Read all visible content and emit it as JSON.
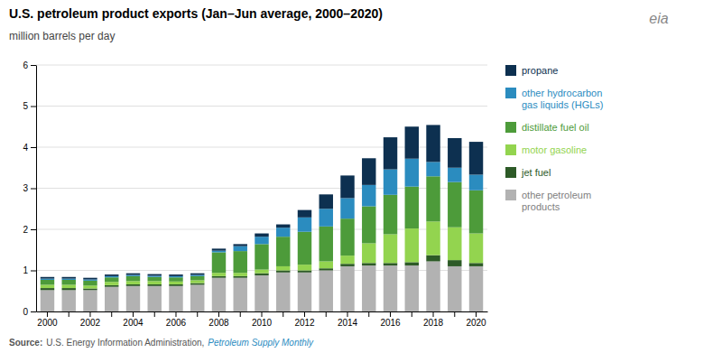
{
  "chart_data": {
    "type": "bar",
    "stacked": true,
    "title": "U.S. petroleum product exports (Jan–Jun average, 2000–2020)",
    "subtitle": "million barrels per day",
    "annotations": [
      "Source:",
      "U.S. Energy Information Administration,",
      "Petroleum Supply Monthly",
      "eia"
    ],
    "categories": [
      "2000",
      null,
      "2002",
      null,
      "2004",
      null,
      "2006",
      null,
      "2008",
      null,
      "2010",
      null,
      "2012",
      null,
      "2014",
      null,
      "2016",
      null,
      "2018",
      null,
      "2020"
    ],
    "series": [
      {
        "name": "other petroleum\nproducts",
        "color": "#b2b2b2",
        "values": [
          0.52,
          0.52,
          0.52,
          0.6,
          0.62,
          0.62,
          0.62,
          0.65,
          0.82,
          0.82,
          0.88,
          0.95,
          0.95,
          1.0,
          1.1,
          1.12,
          1.12,
          1.12,
          1.22,
          1.1,
          1.1
        ]
      },
      {
        "name": "jet fuel",
        "color": "#2d5a27",
        "values": [
          0.05,
          0.05,
          0.04,
          0.04,
          0.04,
          0.04,
          0.04,
          0.04,
          0.04,
          0.04,
          0.05,
          0.05,
          0.05,
          0.05,
          0.06,
          0.06,
          0.06,
          0.08,
          0.15,
          0.15,
          0.08
        ]
      },
      {
        "name": "motor gasoline",
        "color": "#93d44f",
        "values": [
          0.08,
          0.08,
          0.07,
          0.08,
          0.08,
          0.08,
          0.07,
          0.07,
          0.08,
          0.08,
          0.09,
          0.1,
          0.14,
          0.17,
          0.2,
          0.48,
          0.7,
          0.82,
          0.82,
          0.8,
          0.72
        ]
      },
      {
        "name": "distillate fuel oil",
        "color": "#4d9b3a",
        "values": [
          0.12,
          0.12,
          0.12,
          0.11,
          0.12,
          0.1,
          0.1,
          0.1,
          0.5,
          0.53,
          0.62,
          0.72,
          0.8,
          0.85,
          0.9,
          0.9,
          0.96,
          1.02,
          1.1,
          1.1,
          1.05
        ]
      },
      {
        "name": "other hydrocarbon\ngas liquids (HGLs)",
        "color": "#2b8cbf",
        "values": [
          0.03,
          0.03,
          0.03,
          0.03,
          0.03,
          0.03,
          0.03,
          0.03,
          0.04,
          0.12,
          0.18,
          0.22,
          0.35,
          0.43,
          0.5,
          0.52,
          0.62,
          0.68,
          0.35,
          0.35,
          0.38
        ]
      },
      {
        "name": "propane",
        "color": "#0d3050",
        "values": [
          0.04,
          0.04,
          0.04,
          0.04,
          0.04,
          0.04,
          0.04,
          0.04,
          0.05,
          0.05,
          0.08,
          0.08,
          0.18,
          0.35,
          0.55,
          0.65,
          0.78,
          0.78,
          0.9,
          0.72,
          0.8
        ]
      }
    ],
    "ylim": [
      0,
      6
    ],
    "yticks": [
      0,
      1,
      2,
      3,
      4,
      5,
      6
    ],
    "grid": true,
    "legend": "right"
  }
}
